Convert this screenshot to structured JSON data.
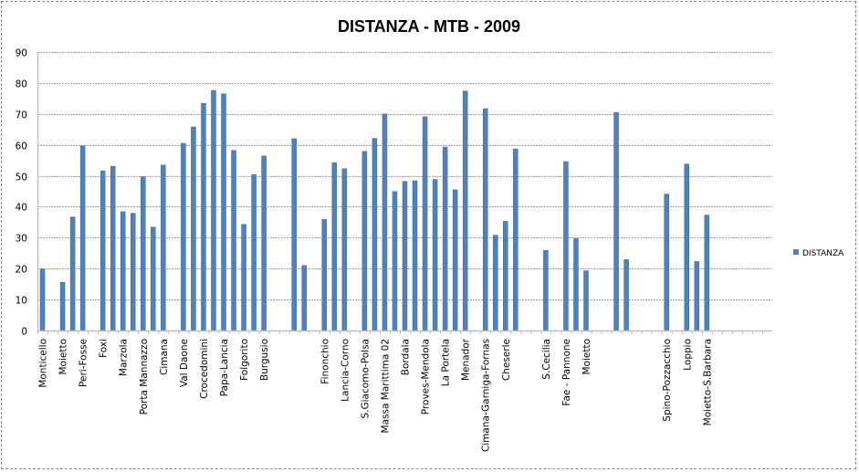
{
  "chart_data": {
    "type": "bar",
    "title": "DISTANZA - MTB - 2009",
    "xlabel": "",
    "ylabel": "",
    "ylim": [
      0,
      90
    ],
    "yticks": [
      0,
      10,
      20,
      30,
      40,
      50,
      60,
      70,
      80,
      90
    ],
    "grid": true,
    "legend_position": "right",
    "colors": {
      "bar": "#4F81BD",
      "grid": "#a0a0a0",
      "axis": "#bfbfbf"
    },
    "categories": [
      "Monticello",
      "",
      "Moietto",
      "",
      "Peri-Fosse",
      "",
      "Foxi",
      "",
      "Marzola",
      "",
      "Porta Mannazzo",
      "",
      "Cimana",
      "",
      "Val Daone",
      "",
      "Crocedomini",
      "",
      "Papa-Lancia",
      "",
      "Folgorito",
      "",
      "Burgusio",
      "",
      "",
      "",
      "",
      "",
      "Finonchio",
      "",
      "Lancia-Corno",
      "",
      "S.Giacomo-Polsa",
      "",
      "Massa Marittima 02",
      "",
      "Bordala",
      "",
      "Proves-Mendola",
      "",
      "La Portela",
      "",
      "Menador",
      "",
      "Cimana-Garniga-Fornas",
      "",
      "Cheserle",
      "",
      "",
      "",
      "S.Cecilia",
      "",
      "Fae - Pannone",
      "",
      "Moietto",
      "",
      "",
      "",
      "",
      "",
      "",
      "",
      "Spino-Pozzacchio",
      "",
      "Loppio",
      "",
      "Moietto-S.Barbara",
      "",
      "",
      "",
      "",
      "",
      ""
    ],
    "series": [
      {
        "name": "DISTANZA",
        "values": [
          19.9,
          null,
          15.6,
          36.7,
          59.7,
          null,
          51.6,
          53.1,
          38.4,
          37.9,
          49.7,
          33.4,
          53.5,
          null,
          60.5,
          65.8,
          73.4,
          77.6,
          76.5,
          58.2,
          34.3,
          50.4,
          56.4,
          null,
          null,
          62.0,
          21.0,
          null,
          35.9,
          54.2,
          52.3,
          null,
          57.9,
          62.1,
          70.0,
          44.9,
          48.2,
          48.4,
          69.1,
          48.8,
          59.3,
          45.5,
          77.4,
          null,
          71.7,
          30.8,
          35.3,
          58.7,
          null,
          null,
          25.9,
          null,
          54.6,
          29.7,
          19.3,
          null,
          null,
          70.5,
          22.9,
          null,
          null,
          null,
          44.1,
          null,
          53.8,
          22.3,
          37.3,
          null,
          null,
          null,
          null,
          null,
          null
        ]
      }
    ]
  }
}
